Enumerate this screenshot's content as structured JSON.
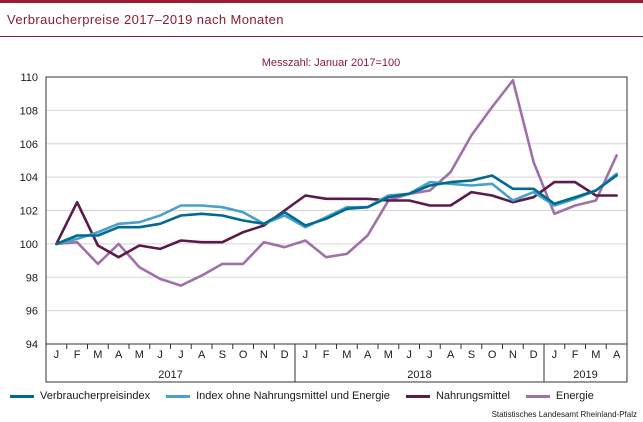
{
  "title": "Verbraucherpreise 2017–2019 nach Monaten",
  "source": "Statistisches Landesamt Rheinland-Pfalz",
  "colors": {
    "accent": "#8a1c34",
    "verbraucherpreisindex": "#006b8f",
    "kerninflation": "#4aa0c8",
    "nahrungsmittel": "#5b1a4a",
    "energie": "#a071a8"
  },
  "chart_data": {
    "type": "line",
    "subtitle": "Messzahl: Januar 2017=100",
    "ylim": [
      94,
      110
    ],
    "yticks": [
      94,
      96,
      98,
      100,
      102,
      104,
      106,
      108,
      110
    ],
    "grid": true,
    "legend_position": "bottom",
    "categories": [
      "J",
      "F",
      "M",
      "A",
      "M",
      "J",
      "J",
      "A",
      "S",
      "O",
      "N",
      "D",
      "J",
      "F",
      "M",
      "A",
      "M",
      "J",
      "J",
      "A",
      "S",
      "O",
      "N",
      "D",
      "J",
      "F",
      "M",
      "A"
    ],
    "years": [
      {
        "label": "2017",
        "start": 0,
        "end": 11
      },
      {
        "label": "2018",
        "start": 12,
        "end": 23
      },
      {
        "label": "2019",
        "start": 24,
        "end": 27
      }
    ],
    "series": [
      {
        "name": "Verbraucherpreisindex",
        "color": "#006b8f",
        "values": [
          100.0,
          100.5,
          100.5,
          101.0,
          101.0,
          101.2,
          101.7,
          101.8,
          101.7,
          101.4,
          101.2,
          101.9,
          101.1,
          101.5,
          102.1,
          102.2,
          102.8,
          103.0,
          103.5,
          103.7,
          103.8,
          104.1,
          103.3,
          103.3,
          102.4,
          102.8,
          103.2,
          104.1
        ]
      },
      {
        "name": "Index ohne Nahrungsmittel und Energie",
        "color": "#4aa0c8",
        "values": [
          100.0,
          100.3,
          100.7,
          101.2,
          101.3,
          101.7,
          102.3,
          102.3,
          102.2,
          101.9,
          101.2,
          101.7,
          101.0,
          101.6,
          102.2,
          102.2,
          102.9,
          103.0,
          103.7,
          103.6,
          103.5,
          103.6,
          102.6,
          103.1,
          102.3,
          102.7,
          103.2,
          104.2
        ]
      },
      {
        "name": "Nahrungsmittel",
        "color": "#5b1a4a",
        "values": [
          100.0,
          102.5,
          99.9,
          99.2,
          99.9,
          99.7,
          100.2,
          100.1,
          100.1,
          100.7,
          101.1,
          102.0,
          102.9,
          102.7,
          102.7,
          102.7,
          102.6,
          102.6,
          102.3,
          102.3,
          103.1,
          102.9,
          102.5,
          102.8,
          103.7,
          103.7,
          102.9,
          102.9
        ]
      },
      {
        "name": "Energie",
        "color": "#a071a8",
        "values": [
          100.0,
          100.1,
          98.8,
          100.0,
          98.6,
          97.9,
          97.5,
          98.1,
          98.8,
          98.8,
          100.1,
          99.8,
          100.2,
          99.2,
          99.4,
          100.5,
          102.6,
          103.0,
          103.2,
          104.3,
          106.5,
          108.2,
          109.8,
          104.9,
          101.8,
          102.3,
          102.6,
          105.3
        ]
      }
    ]
  }
}
